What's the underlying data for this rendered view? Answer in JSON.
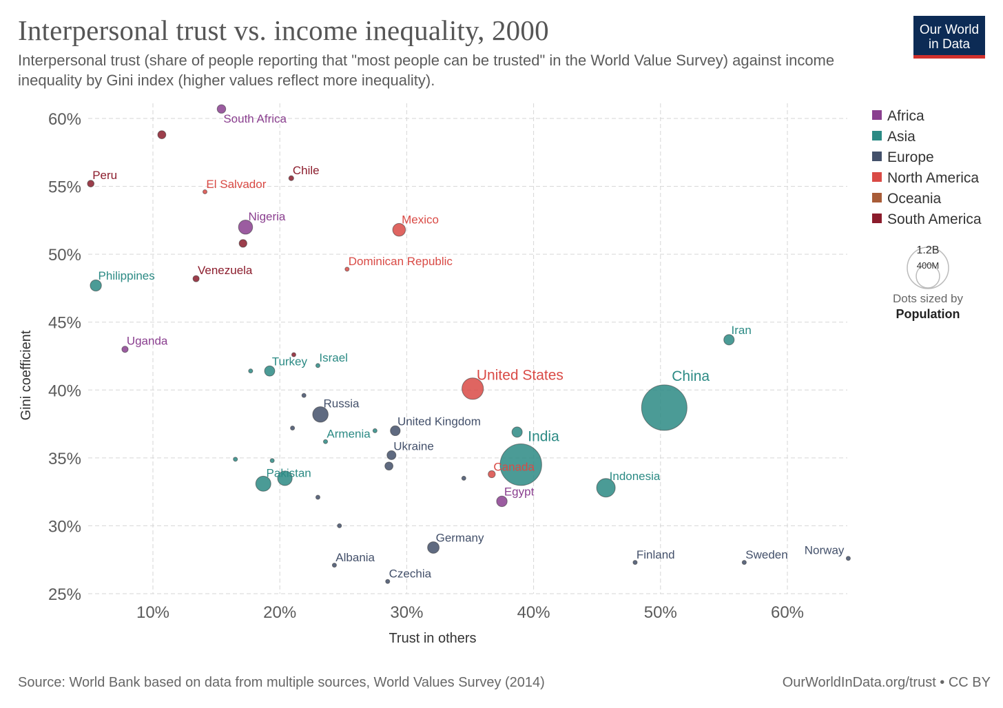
{
  "title": "Interpersonal trust vs. income inequality, 2000",
  "subtitle": "Interpersonal trust (share of people reporting that \"most people can be trusted\" in the World Value Survey) against income inequality by Gini index (higher values reflect more inequality).",
  "logo": {
    "line1": "Our World",
    "line2": "in Data"
  },
  "footer": {
    "source": "Source: World Bank based on data from multiple sources, World Values Survey (2014)",
    "credit": "OurWorldInData.org/trust • CC BY"
  },
  "size_legend": {
    "big": "1.2B",
    "small": "400M",
    "note": "Dots sized by",
    "var": "Population"
  },
  "colors": {
    "Africa": "#8a3f8f",
    "Asia": "#2b8a84",
    "Europe": "#43506a",
    "North America": "#d94a45",
    "Oceania": "#a85c38",
    "South America": "#8b1c2c"
  },
  "chart_data": {
    "type": "scatter",
    "title": "Interpersonal trust vs. income inequality, 2000",
    "xlabel": "Trust in others",
    "ylabel": "Gini coefficient",
    "xlim": [
      5,
      65
    ],
    "ylim": [
      25,
      61
    ],
    "xticks": [
      10,
      20,
      30,
      40,
      50,
      60
    ],
    "yticks": [
      25,
      30,
      35,
      40,
      45,
      50,
      55,
      60
    ],
    "tick_format": "percent",
    "grid": true,
    "legend_position": "right",
    "legend": [
      "Africa",
      "Asia",
      "Europe",
      "North America",
      "Oceania",
      "South America"
    ],
    "points": [
      {
        "label": "South Africa",
        "x": 15.4,
        "y": 60.7,
        "region": "Africa",
        "pop": 45
      },
      {
        "label": "",
        "x": 10.7,
        "y": 58.8,
        "region": "South America",
        "pop": 40
      },
      {
        "label": "Peru",
        "x": 5.1,
        "y": 55.2,
        "region": "South America",
        "pop": 27
      },
      {
        "label": "Chile",
        "x": 20.9,
        "y": 55.6,
        "region": "South America",
        "pop": 15
      },
      {
        "label": "El Salvador",
        "x": 14.1,
        "y": 54.6,
        "region": "North America",
        "pop": 6
      },
      {
        "label": "Nigeria",
        "x": 17.3,
        "y": 52.0,
        "region": "Africa",
        "pop": 122
      },
      {
        "label": "Mexico",
        "x": 29.4,
        "y": 51.8,
        "region": "North America",
        "pop": 100
      },
      {
        "label": "",
        "x": 17.1,
        "y": 50.8,
        "region": "South America",
        "pop": 37
      },
      {
        "label": "Dominican Republic",
        "x": 25.3,
        "y": 48.9,
        "region": "North America",
        "pop": 8
      },
      {
        "label": "Venezuela",
        "x": 13.4,
        "y": 48.2,
        "region": "South America",
        "pop": 24
      },
      {
        "label": "Philippines",
        "x": 5.5,
        "y": 47.7,
        "region": "Asia",
        "pop": 77
      },
      {
        "label": "Uganda",
        "x": 7.8,
        "y": 43.0,
        "region": "Africa",
        "pop": 24
      },
      {
        "label": "Iran",
        "x": 55.4,
        "y": 43.7,
        "region": "Asia",
        "pop": 66
      },
      {
        "label": "",
        "x": 21.1,
        "y": 42.6,
        "region": "South America",
        "pop": 4
      },
      {
        "label": "Israel",
        "x": 23.0,
        "y": 41.8,
        "region": "Asia",
        "pop": 6
      },
      {
        "label": "",
        "x": 17.7,
        "y": 41.4,
        "region": "Asia",
        "pop": 6
      },
      {
        "label": "Turkey",
        "x": 19.2,
        "y": 41.4,
        "region": "Asia",
        "pop": 64
      },
      {
        "label": "United States",
        "x": 35.2,
        "y": 40.1,
        "region": "North America",
        "pop": 282
      },
      {
        "label": "China",
        "x": 50.3,
        "y": 38.7,
        "region": "Asia",
        "pop": 1263
      },
      {
        "label": "",
        "x": 21.9,
        "y": 39.6,
        "region": "Europe",
        "pop": 10
      },
      {
        "label": "Russia",
        "x": 23.2,
        "y": 38.2,
        "region": "Europe",
        "pop": 147
      },
      {
        "label": "United Kingdom",
        "x": 29.1,
        "y": 37.0,
        "region": "Europe",
        "pop": 59
      },
      {
        "label": "",
        "x": 21.0,
        "y": 37.2,
        "region": "Europe",
        "pop": 5
      },
      {
        "label": "",
        "x": 27.5,
        "y": 37.0,
        "region": "Asia",
        "pop": 4
      },
      {
        "label": "Armenia",
        "x": 23.6,
        "y": 36.2,
        "region": "Asia",
        "pop": 3
      },
      {
        "label": "",
        "x": 38.7,
        "y": 36.9,
        "region": "Asia",
        "pop": 65
      },
      {
        "label": "India",
        "x": 39.0,
        "y": 34.5,
        "region": "Asia",
        "pop": 1057
      },
      {
        "label": "Ukraine",
        "x": 28.8,
        "y": 35.2,
        "region": "Europe",
        "pop": 49
      },
      {
        "label": "",
        "x": 16.5,
        "y": 34.9,
        "region": "Asia",
        "pop": 5
      },
      {
        "label": "",
        "x": 19.4,
        "y": 34.8,
        "region": "Asia",
        "pop": 5
      },
      {
        "label": "",
        "x": 28.6,
        "y": 34.4,
        "region": "Europe",
        "pop": 40
      },
      {
        "label": "Canada",
        "x": 36.7,
        "y": 33.8,
        "region": "North America",
        "pop": 31
      },
      {
        "label": "",
        "x": 34.5,
        "y": 33.5,
        "region": "Europe",
        "pop": 5
      },
      {
        "label": "Pakistan",
        "x": 18.7,
        "y": 33.1,
        "region": "Asia",
        "pop": 140
      },
      {
        "label": "",
        "x": 20.4,
        "y": 33.5,
        "region": "Asia",
        "pop": 130
      },
      {
        "label": "Indonesia",
        "x": 45.7,
        "y": 32.8,
        "region": "Asia",
        "pop": 212
      },
      {
        "label": "",
        "x": 23.0,
        "y": 32.1,
        "region": "Europe",
        "pop": 5
      },
      {
        "label": "Egypt",
        "x": 37.5,
        "y": 31.8,
        "region": "Africa",
        "pop": 68
      },
      {
        "label": "",
        "x": 24.7,
        "y": 30.0,
        "region": "Europe",
        "pop": 5
      },
      {
        "label": "Germany",
        "x": 32.1,
        "y": 28.4,
        "region": "Europe",
        "pop": 82
      },
      {
        "label": "Albania",
        "x": 24.3,
        "y": 27.1,
        "region": "Europe",
        "pop": 3
      },
      {
        "label": "Czechia",
        "x": 28.5,
        "y": 25.9,
        "region": "Europe",
        "pop": 10
      },
      {
        "label": "Finland",
        "x": 48.0,
        "y": 27.3,
        "region": "Europe",
        "pop": 5
      },
      {
        "label": "Sweden",
        "x": 56.6,
        "y": 27.3,
        "region": "Europe",
        "pop": 9
      },
      {
        "label": "Norway",
        "x": 64.8,
        "y": 27.6,
        "region": "Europe",
        "pop": 4
      }
    ]
  }
}
